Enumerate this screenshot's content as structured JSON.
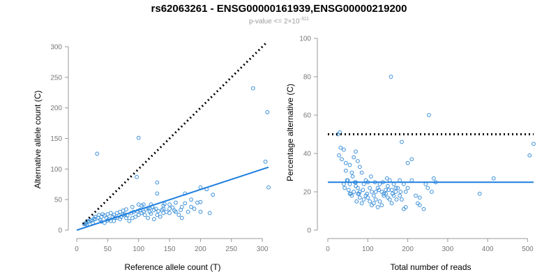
{
  "title": "rs62063261 - ENSG00000161939,ENSG00000219200",
  "subtitle": {
    "prefix": "p-value <= 2×10",
    "exponent": "-311"
  },
  "colors": {
    "points": "#3a8fd9",
    "fit": "#1f7fe0",
    "reference": "#000000",
    "axis": "#999999"
  },
  "chart_data": [
    {
      "type": "scatter",
      "xlabel": "Reference allele count (T)",
      "ylabel": "Alternative allele count (C)",
      "xlim": [
        0,
        310
      ],
      "ylim": [
        0,
        300
      ],
      "xticks": [
        0,
        50,
        100,
        150,
        200,
        250,
        300
      ],
      "yticks": [
        0,
        50,
        100,
        150,
        200,
        250,
        300
      ],
      "reference_line": {
        "style": "dotted",
        "x": [
          10,
          308
        ],
        "y": [
          10,
          308
        ]
      },
      "fit_line": {
        "style": "solid",
        "x": [
          0,
          310
        ],
        "y": [
          0,
          103
        ]
      },
      "points": [
        [
          33,
          125
        ],
        [
          100,
          151
        ],
        [
          285,
          232
        ],
        [
          308,
          193
        ],
        [
          305,
          112
        ],
        [
          310,
          70
        ],
        [
          97,
          87
        ],
        [
          130,
          78
        ],
        [
          200,
          70
        ],
        [
          210,
          67
        ],
        [
          130,
          60
        ],
        [
          175,
          60
        ],
        [
          185,
          50
        ],
        [
          200,
          46
        ],
        [
          160,
          45
        ],
        [
          150,
          42
        ],
        [
          140,
          40
        ],
        [
          120,
          42
        ],
        [
          105,
          40
        ],
        [
          115,
          36
        ],
        [
          125,
          33
        ],
        [
          140,
          35
        ],
        [
          155,
          37
        ],
        [
          100,
          42
        ],
        [
          90,
          38
        ],
        [
          80,
          34
        ],
        [
          75,
          32
        ],
        [
          70,
          30
        ],
        [
          65,
          28
        ],
        [
          60,
          25
        ],
        [
          55,
          28
        ],
        [
          50,
          26
        ],
        [
          45,
          24
        ],
        [
          40,
          22
        ],
        [
          35,
          20
        ],
        [
          30,
          18
        ],
        [
          25,
          16
        ],
        [
          20,
          14
        ],
        [
          15,
          12
        ],
        [
          12,
          10
        ],
        [
          18,
          15
        ],
        [
          22,
          16
        ],
        [
          28,
          19
        ],
        [
          38,
          17
        ],
        [
          48,
          20
        ],
        [
          52,
          18
        ],
        [
          58,
          22
        ],
        [
          62,
          20
        ],
        [
          68,
          24
        ],
        [
          72,
          22
        ],
        [
          78,
          26
        ],
        [
          82,
          24
        ],
        [
          88,
          28
        ],
        [
          92,
          30
        ],
        [
          98,
          31
        ],
        [
          102,
          33
        ],
        [
          108,
          30
        ],
        [
          112,
          34
        ],
        [
          118,
          36
        ],
        [
          122,
          38
        ],
        [
          128,
          35
        ],
        [
          132,
          31
        ],
        [
          138,
          33
        ],
        [
          145,
          30
        ],
        [
          150,
          28
        ],
        [
          165,
          25
        ],
        [
          170,
          20
        ],
        [
          180,
          30
        ],
        [
          190,
          35
        ],
        [
          195,
          45
        ],
        [
          200,
          30
        ],
        [
          215,
          28
        ],
        [
          220,
          58
        ],
        [
          60,
          15
        ],
        [
          70,
          18
        ],
        [
          80,
          20
        ],
        [
          85,
          15
        ],
        [
          95,
          22
        ],
        [
          110,
          25
        ],
        [
          115,
          20
        ],
        [
          125,
          18
        ],
        [
          135,
          22
        ],
        [
          40,
          14
        ],
        [
          45,
          12
        ],
        [
          50,
          16
        ],
        [
          55,
          15
        ],
        [
          65,
          20
        ],
        [
          75,
          25
        ],
        [
          90,
          20
        ],
        [
          100,
          25
        ],
        [
          105,
          28
        ],
        [
          120,
          27
        ],
        [
          130,
          25
        ],
        [
          140,
          28
        ],
        [
          150,
          35
        ],
        [
          160,
          30
        ],
        [
          170,
          38
        ],
        [
          175,
          44
        ],
        [
          42,
          26
        ],
        [
          36,
          25
        ],
        [
          30,
          22
        ],
        [
          26,
          12
        ],
        [
          14,
          10
        ],
        [
          16,
          9
        ],
        [
          108,
          42
        ],
        [
          118,
          30
        ],
        [
          142,
          43
        ],
        [
          158,
          32
        ],
        [
          168,
          33
        ],
        [
          185,
          38
        ]
      ]
    },
    {
      "type": "scatter",
      "xlabel": "Total number of reads",
      "ylabel": "Percentage alternative (C)",
      "xlim": [
        0,
        515
      ],
      "ylim": [
        0,
        100
      ],
      "xticks": [
        0,
        100,
        200,
        300,
        400,
        500
      ],
      "yticks": [
        0,
        20,
        40,
        60,
        80,
        100
      ],
      "reference_line": {
        "style": "dotted",
        "x": [
          0,
          515
        ],
        "y": [
          50,
          50
        ]
      },
      "fit_line": {
        "style": "solid",
        "x": [
          0,
          515
        ],
        "y": [
          25,
          25
        ]
      },
      "points": [
        [
          158,
          80
        ],
        [
          253,
          60
        ],
        [
          30,
          51
        ],
        [
          25,
          50
        ],
        [
          185,
          46
        ],
        [
          515,
          45
        ],
        [
          505,
          39
        ],
        [
          32,
          43
        ],
        [
          28,
          39
        ],
        [
          40,
          42
        ],
        [
          35,
          37
        ],
        [
          45,
          35
        ],
        [
          55,
          34
        ],
        [
          65,
          38
        ],
        [
          70,
          41
        ],
        [
          75,
          36
        ],
        [
          80,
          33
        ],
        [
          85,
          30
        ],
        [
          60,
          30
        ],
        [
          62,
          28
        ],
        [
          50,
          26
        ],
        [
          55,
          24
        ],
        [
          70,
          25
        ],
        [
          75,
          22
        ],
        [
          80,
          20
        ],
        [
          90,
          24
        ],
        [
          95,
          26
        ],
        [
          100,
          25
        ],
        [
          105,
          22
        ],
        [
          110,
          20
        ],
        [
          115,
          18
        ],
        [
          120,
          20
        ],
        [
          125,
          22
        ],
        [
          130,
          24
        ],
        [
          135,
          20
        ],
        [
          140,
          18
        ],
        [
          145,
          19
        ],
        [
          150,
          17
        ],
        [
          155,
          16
        ],
        [
          160,
          14
        ],
        [
          165,
          18
        ],
        [
          170,
          20
        ],
        [
          175,
          22
        ],
        [
          180,
          18
        ],
        [
          185,
          16
        ],
        [
          190,
          24
        ],
        [
          195,
          20
        ],
        [
          200,
          22
        ],
        [
          210,
          26
        ],
        [
          220,
          18
        ],
        [
          225,
          14
        ],
        [
          230,
          13
        ],
        [
          240,
          11
        ],
        [
          245,
          24
        ],
        [
          250,
          22
        ],
        [
          260,
          20
        ],
        [
          265,
          27
        ],
        [
          270,
          25
        ],
        [
          55,
          19
        ],
        [
          60,
          18
        ],
        [
          65,
          20
        ],
        [
          70,
          23
        ],
        [
          75,
          19
        ],
        [
          80,
          17
        ],
        [
          85,
          14
        ],
        [
          90,
          16
        ],
        [
          95,
          18
        ],
        [
          100,
          17
        ],
        [
          105,
          15
        ],
        [
          110,
          13
        ],
        [
          115,
          14
        ],
        [
          120,
          16
        ],
        [
          125,
          12
        ],
        [
          130,
          15
        ],
        [
          135,
          13
        ],
        [
          140,
          19
        ],
        [
          145,
          21
        ],
        [
          150,
          23
        ],
        [
          155,
          26
        ],
        [
          160,
          21
        ],
        [
          165,
          24
        ],
        [
          170,
          22
        ],
        [
          180,
          26
        ],
        [
          190,
          11
        ],
        [
          195,
          12
        ],
        [
          200,
          35
        ],
        [
          210,
          37
        ],
        [
          230,
          17
        ],
        [
          380,
          19
        ],
        [
          415,
          27
        ],
        [
          40,
          24
        ],
        [
          42,
          22
        ],
        [
          48,
          26
        ],
        [
          52,
          21
        ],
        [
          58,
          19
        ],
        [
          68,
          25
        ],
        [
          72,
          15
        ],
        [
          78,
          19
        ],
        [
          88,
          21
        ],
        [
          98,
          19
        ],
        [
          108,
          28
        ],
        [
          118,
          25
        ],
        [
          128,
          21
        ],
        [
          138,
          25
        ],
        [
          148,
          27
        ],
        [
          152,
          21
        ],
        [
          162,
          19
        ],
        [
          172,
          16
        ],
        [
          182,
          20
        ],
        [
          45,
          31
        ]
      ]
    }
  ]
}
